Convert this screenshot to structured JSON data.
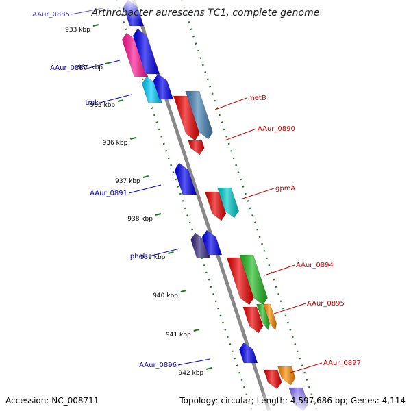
{
  "title": "Arthrobacter aurescens TC1, complete genome",
  "footer": {
    "accession": "Accession: NC_008711",
    "stats": "Topology: circular; Length: 4,597,686 bp; Genes: 4,114"
  },
  "ticks": [
    "933 kbp",
    "934 kbp",
    "935 kbp",
    "936 kbp",
    "937 kbp",
    "938 kbp",
    "939 kbp",
    "940 kbp",
    "941 kbp",
    "942 kbp"
  ],
  "colors": {
    "backbone": "#888888",
    "tick_dots": "#1e7a1e",
    "label_forward": "#cc0000",
    "label_reverse": "#0000cc"
  },
  "genes_reverse": [
    {
      "label": "AAur_0885",
      "color": "#0000ee"
    },
    {
      "label": "",
      "color": "#ff1493"
    },
    {
      "label": "AAur_0887",
      "color": "#0000ee"
    },
    {
      "label": "tmk",
      "color": "#00ccff"
    },
    {
      "label": "",
      "color": "#0000ee"
    },
    {
      "label": "",
      "color": "#0000ee"
    },
    {
      "label": "AAur_0891",
      "color": "#0000ee"
    },
    {
      "label": "phoU",
      "color": "#3a2a80"
    },
    {
      "label": "",
      "color": "#0000ee"
    },
    {
      "label": "AAur_0896",
      "color": "#0000ee"
    }
  ],
  "genes_forward": [
    {
      "label": "metB",
      "color": "#ee0000"
    },
    {
      "label": "",
      "color": "#4682b4"
    },
    {
      "label": "AAur_0890",
      "color": "#ee0000"
    },
    {
      "label": "gpmA",
      "color": "#ee0000"
    },
    {
      "label": "",
      "color": "#00cccc"
    },
    {
      "label": "AAur_0894",
      "color": "#ee0000"
    },
    {
      "label": "",
      "color": "#22bb22"
    },
    {
      "label": "AAur_0895",
      "color": "#ee0000"
    },
    {
      "label": "",
      "color": "#22bb22"
    },
    {
      "label": "",
      "color": "#ff8c00"
    },
    {
      "label": "AAur_0897",
      "color": "#ee0000"
    },
    {
      "label": "",
      "color": "#ff8c00"
    },
    {
      "label": "",
      "color": "#7b68ee"
    }
  ]
}
